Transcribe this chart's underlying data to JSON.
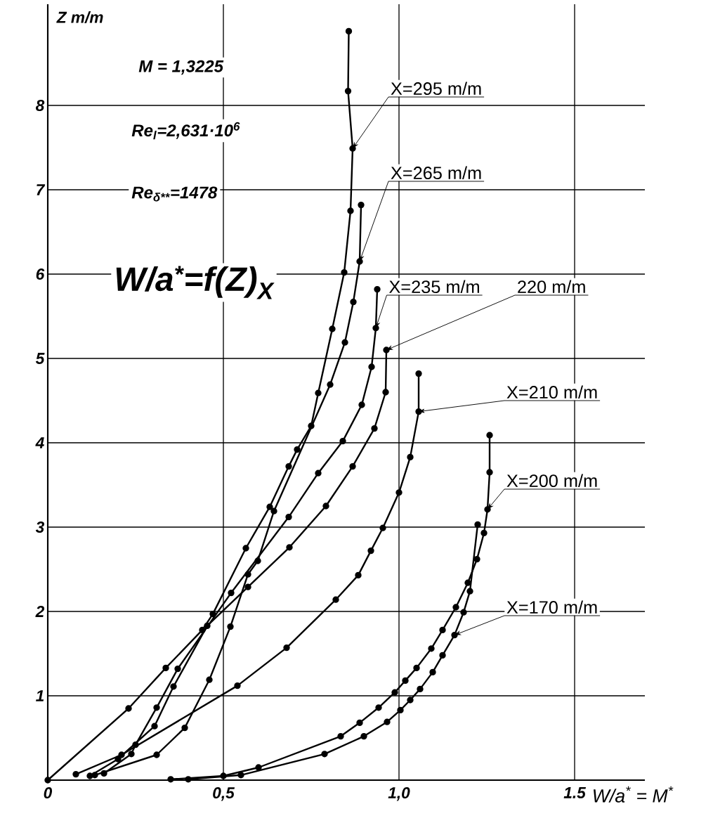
{
  "chart_data": {
    "type": "line",
    "xlabel": "W/a$^{*}$ = M$^{*}$",
    "ylabel": "Z m/m",
    "annotations": [
      "M = 1,3225",
      "Re$_{l}$=2,631·10$^{6}$",
      "Re$_{δ**}$=1478",
      "W/a$^{*}$=f(Z)$_{X}$"
    ],
    "xlim": [
      0,
      1.7
    ],
    "ylim": [
      0,
      9.2
    ],
    "xticks": [
      0,
      {
        "value": 0.5,
        "label": "0,5"
      },
      {
        "value": 1.0,
        "label": "1,0"
      },
      {
        "value": 1.5,
        "label": "1.5"
      }
    ],
    "yticks": [
      {
        "value": 0,
        "label": null
      },
      1,
      2,
      3,
      4,
      5,
      6,
      7,
      8
    ],
    "grid": true,
    "marker": "circle",
    "line_style": "solid",
    "series": [
      {
        "name": "X=295 m/m",
        "color": "#000000",
        "x": [
          0,
          0.23,
          0.336,
          0.44,
          0.47,
          0.564,
          0.632,
          0.686,
          0.71,
          0.75,
          0.77,
          0.81,
          0.844,
          0.862,
          0.868,
          0.855,
          0.857
        ],
        "values": [
          0,
          0.85,
          1.33,
          1.78,
          1.97,
          2.75,
          3.24,
          3.72,
          3.92,
          4.2,
          4.59,
          5.35,
          6.02,
          6.75,
          7.49,
          8.17,
          8.88
        ]
      },
      {
        "name": "X=265 m/m",
        "color": "#000000",
        "x": [
          0.134,
          0.31,
          0.39,
          0.46,
          0.52,
          0.57,
          0.598,
          0.644,
          0.71,
          0.75,
          0.804,
          0.846,
          0.87,
          0.888,
          0.892
        ],
        "values": [
          0.06,
          0.3,
          0.62,
          1.19,
          1.82,
          2.44,
          2.6,
          3.19,
          null,
          null,
          4.69,
          5.19,
          5.67,
          6.15,
          6.82
        ]
      },
      {
        "name": "X=235 m/m",
        "color": "#000000",
        "x": [
          0.16,
          0.238,
          0.25,
          0.31,
          0.37,
          0.44,
          0.522,
          0.686,
          0.77,
          0.84,
          0.894,
          0.922,
          0.934,
          0.938
        ],
        "values": [
          0.08,
          0.31,
          0.42,
          0.86,
          1.32,
          null,
          2.22,
          3.12,
          3.64,
          4.02,
          4.45,
          4.9,
          5.36,
          5.82
        ]
      },
      {
        "name": "220 m/m",
        "color": "#000000",
        "x": [
          0.12,
          0.2,
          0.304,
          0.358,
          0.454,
          0.57,
          0.688,
          0.792,
          0.868,
          0.93,
          0.962,
          0.964
        ],
        "values": [
          0.05,
          0.25,
          0.64,
          1.11,
          1.83,
          2.29,
          2.76,
          3.25,
          3.72,
          4.17,
          4.6,
          5.1
        ]
      },
      {
        "name": "X=210 m/m",
        "color": "#000000",
        "x": [
          0.08,
          0.21,
          0.54,
          0.68,
          0.82,
          0.884,
          0.92,
          0.954,
          1.0,
          1.032,
          1.056,
          1.056
        ],
        "values": [
          0.07,
          0.3,
          1.12,
          1.57,
          2.14,
          2.43,
          2.72,
          2.99,
          3.41,
          3.83,
          4.37,
          4.82
        ]
      },
      {
        "name": "X=200 m/m",
        "color": "#000000",
        "x": [
          0.35,
          0.5,
          0.6,
          0.834,
          0.888,
          0.942,
          0.988,
          1.018,
          1.05,
          1.092,
          1.124,
          1.162,
          1.196,
          1.222,
          1.242,
          1.252,
          1.258,
          1.258
        ],
        "values": [
          0.01,
          0.05,
          0.15,
          0.52,
          0.68,
          0.86,
          1.04,
          1.18,
          1.33,
          1.56,
          1.78,
          2.05,
          2.34,
          2.62,
          2.93,
          3.21,
          3.65,
          4.09
        ]
      },
      {
        "name": "X=170 m/m",
        "color": "#000000",
        "x": [
          0.4,
          0.55,
          0.788,
          0.9,
          0.966,
          1.004,
          1.032,
          1.06,
          1.096,
          1.124,
          1.158,
          1.184,
          1.202,
          1.224
        ],
        "values": [
          0.01,
          0.06,
          0.31,
          0.52,
          0.69,
          0.83,
          0.95,
          1.08,
          1.28,
          1.48,
          1.72,
          1.99,
          2.24,
          3.03
        ]
      }
    ]
  }
}
